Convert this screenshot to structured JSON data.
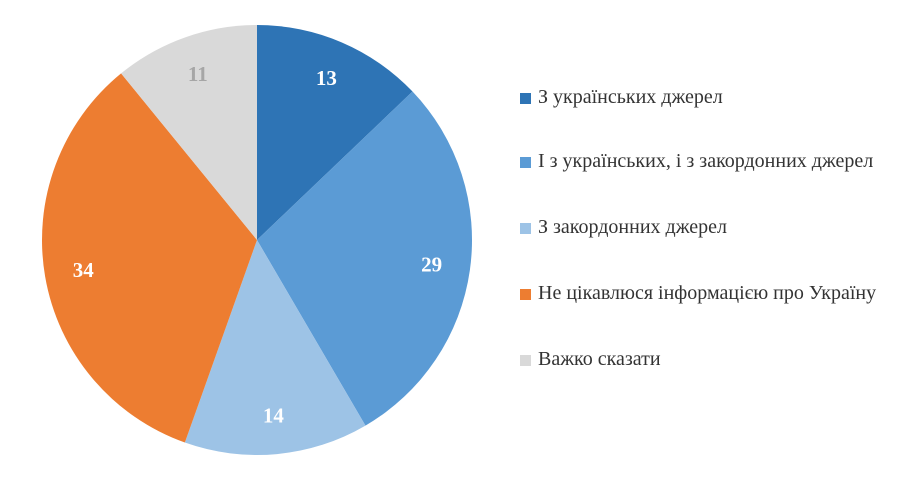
{
  "chart_data": {
    "type": "pie",
    "categories": [
      "З українських джерел",
      "І з українських, і з закордонних джерел",
      "З закордонних джерел",
      "Не цікавлюся інформацією про Україну",
      "Важко сказати"
    ],
    "values": [
      13,
      29,
      14,
      34,
      11
    ],
    "colors": [
      "#2e74b5",
      "#5b9bd5",
      "#9dc3e6",
      "#ed7d31",
      "#d9d9d9"
    ],
    "label_colors": [
      "#ffffff",
      "#ffffff",
      "#ffffff",
      "#ffffff",
      "#a6a6a6"
    ],
    "start_angle_deg": 0,
    "direction": "clockwise",
    "legend_position": "right"
  }
}
